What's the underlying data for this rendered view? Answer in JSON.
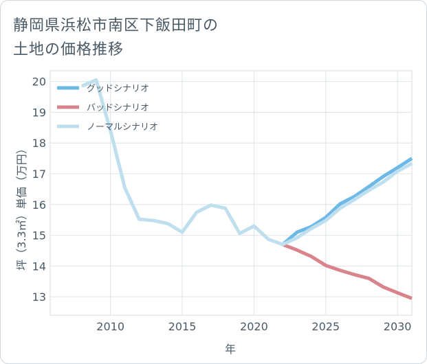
{
  "title_line1": "静岡県浜松市南区下飯田町の",
  "title_line2": "土地の価格推移",
  "chart_data": {
    "type": "line",
    "title": "静岡県浜松市南区下飯田町の土地の価格推移",
    "xlabel": "年",
    "ylabel": "坪（3.3㎡）単価（万円）",
    "xlim": [
      2005.8,
      2031
    ],
    "ylim": [
      12.4,
      20.35
    ],
    "xticks": [
      2010,
      2015,
      2020,
      2025,
      2030
    ],
    "yticks": [
      13,
      14,
      15,
      16,
      17,
      18,
      19,
      20
    ],
    "grid": true,
    "legend_position": "top-left",
    "series": [
      {
        "name": "グッドシナリオ",
        "color": "#6cb8e6",
        "x": [
          2022,
          2023,
          2024,
          2025,
          2026,
          2027,
          2028,
          2029,
          2030,
          2031
        ],
        "values": [
          14.7,
          15.1,
          15.28,
          15.58,
          16.02,
          16.26,
          16.58,
          16.91,
          17.2,
          17.5
        ]
      },
      {
        "name": "バッドシナリオ",
        "color": "#d9848c",
        "x": [
          2022,
          2023,
          2024,
          2025,
          2026,
          2027,
          2028,
          2029,
          2030,
          2031
        ],
        "values": [
          14.7,
          14.52,
          14.31,
          14.02,
          13.86,
          13.72,
          13.6,
          13.32,
          13.13,
          12.95
        ]
      },
      {
        "name": "ノーマルシナリオ",
        "color": "#bfdfee",
        "x": [
          2008,
          2009,
          2010,
          2011,
          2012,
          2013,
          2014,
          2015,
          2016,
          2017,
          2018,
          2019,
          2020,
          2021,
          2022,
          2023,
          2024,
          2025,
          2026,
          2027,
          2028,
          2029,
          2030,
          2031
        ],
        "values": [
          19.85,
          20.05,
          18.4,
          16.55,
          15.52,
          15.48,
          15.38,
          15.1,
          15.75,
          15.98,
          15.88,
          15.06,
          15.3,
          14.87,
          14.7,
          14.92,
          15.22,
          15.48,
          15.88,
          16.16,
          16.46,
          16.73,
          17.08,
          17.33
        ]
      }
    ]
  }
}
